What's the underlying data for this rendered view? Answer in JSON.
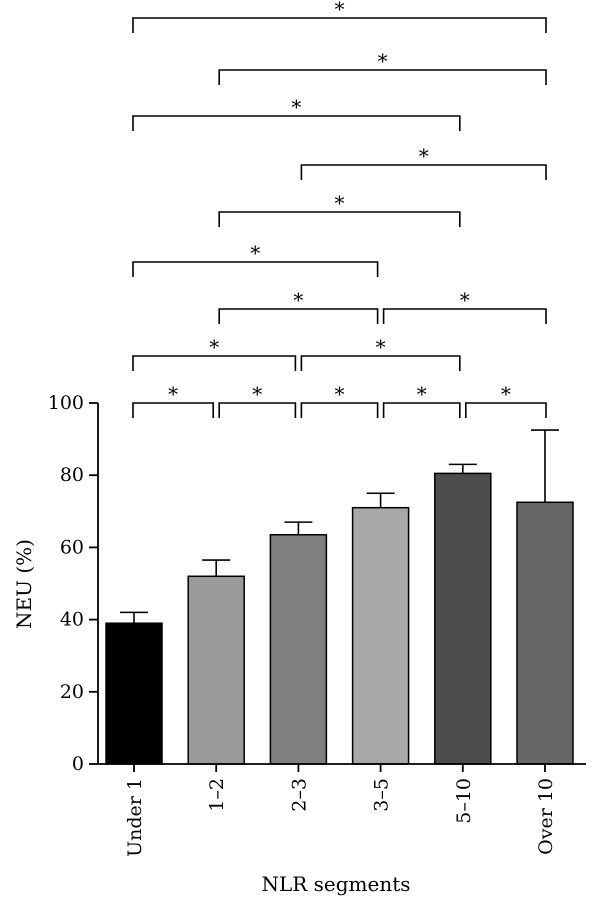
{
  "chart_data": {
    "type": "bar",
    "categories": [
      "Under 1",
      "1–2",
      "2–3",
      "3–5",
      "5–10",
      "Over 10"
    ],
    "values": [
      39,
      52,
      63.5,
      71,
      80.5,
      72.5
    ],
    "error_low": [
      36,
      48,
      60.5,
      67,
      77.5,
      52
    ],
    "error_high": [
      42,
      56.5,
      67,
      75,
      83,
      92.5
    ],
    "bar_colors": [
      "#000000",
      "#9a9a9a",
      "#7f7f7f",
      "#a8a8a8",
      "#4d4d4d",
      "#676767"
    ],
    "xlabel": "NLR segments",
    "ylabel": "NEU (%)",
    "ylim": [
      0,
      100
    ],
    "yticks": [
      {
        "value": 0,
        "label": "0"
      },
      {
        "value": 20,
        "label": "20"
      },
      {
        "value": 40,
        "label": "40"
      },
      {
        "value": 60,
        "label": "60"
      },
      {
        "value": 80,
        "label": "80"
      },
      {
        "value": 100,
        "label": "100"
      }
    ],
    "grid": false,
    "significance_marker": "*",
    "significance_brackets": [
      {
        "from": 0,
        "to": 1,
        "level": 0
      },
      {
        "from": 1,
        "to": 2,
        "level": 0
      },
      {
        "from": 2,
        "to": 3,
        "level": 0
      },
      {
        "from": 3,
        "to": 4,
        "level": 0
      },
      {
        "from": 4,
        "to": 5,
        "level": 0
      },
      {
        "from": 0,
        "to": 2,
        "level": 1
      },
      {
        "from": 2,
        "to": 4,
        "level": 1
      },
      {
        "from": 1,
        "to": 3,
        "level": 2
      },
      {
        "from": 3,
        "to": 5,
        "level": 2
      },
      {
        "from": 0,
        "to": 3,
        "level": 3
      },
      {
        "from": 1,
        "to": 4,
        "level": 4
      },
      {
        "from": 2,
        "to": 5,
        "level": 5
      },
      {
        "from": 0,
        "to": 4,
        "level": 6
      },
      {
        "from": 1,
        "to": 5,
        "level": 7
      },
      {
        "from": 0,
        "to": 5,
        "level": 8
      }
    ]
  }
}
